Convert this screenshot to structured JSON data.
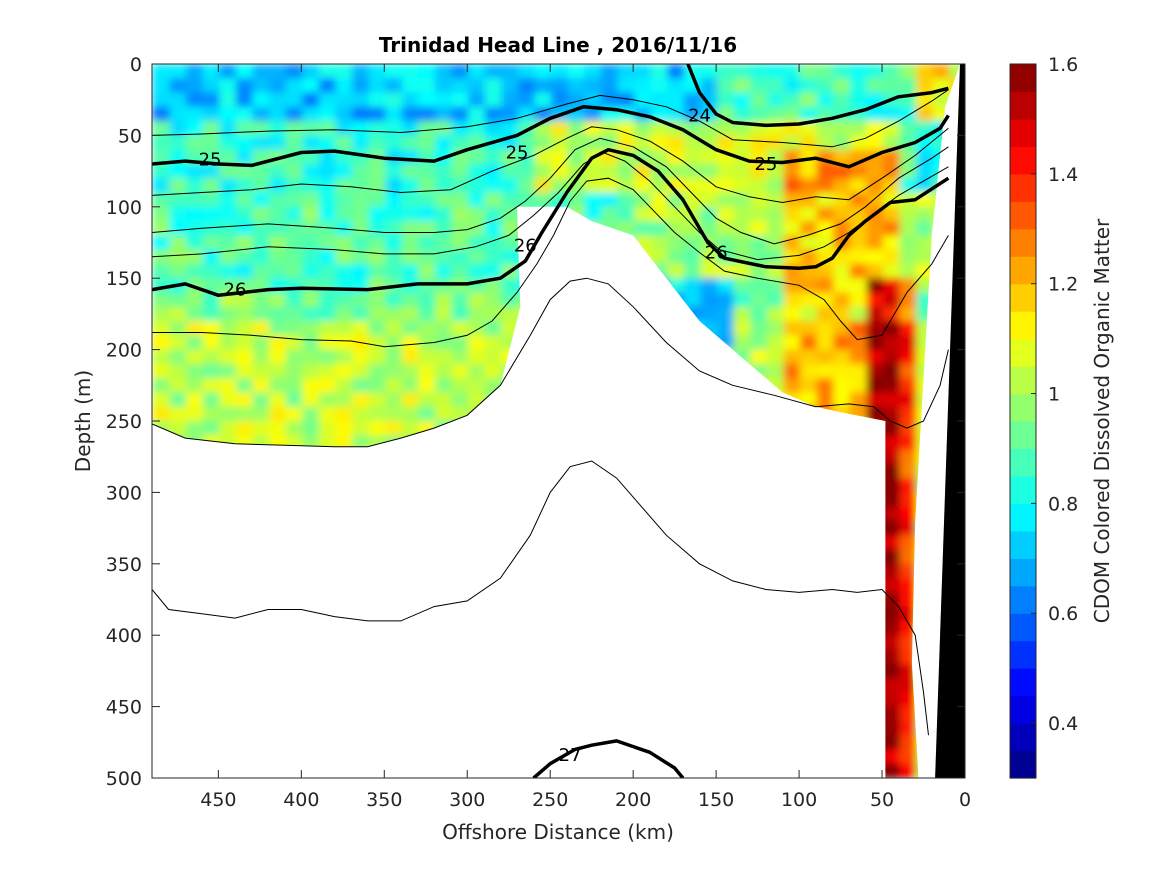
{
  "chart_data": {
    "type": "heatmap",
    "title": "Trinidad Head Line , 2016/11/16",
    "xlabel": "Offshore Distance (km)",
    "ylabel": "Depth (m)",
    "colorbar_label": "CDOM Colored Dissolved Organic Matter",
    "xlim": [
      490,
      0
    ],
    "ylim": [
      0,
      500
    ],
    "x_reversed": true,
    "y_reversed": true,
    "clim": [
      0.3,
      1.6
    ],
    "colormap": "jet",
    "x_ticks": [
      450,
      400,
      350,
      300,
      250,
      200,
      150,
      100,
      50,
      0
    ],
    "y_ticks": [
      0,
      50,
      100,
      150,
      200,
      250,
      300,
      350,
      400,
      450,
      500
    ],
    "colorbar_ticks": [
      0.4,
      0.6,
      0.8,
      1,
      1.2,
      1.4,
      1.6
    ],
    "colorbar_tick_labels": [
      "0.4",
      "0.6",
      "0.8",
      "1",
      "1.2",
      "1.4",
      "1.6"
    ],
    "contour_labels": [
      {
        "text": "24",
        "x": 160,
        "y": 36
      },
      {
        "text": "25",
        "x": 455,
        "y": 67
      },
      {
        "text": "25",
        "x": 270,
        "y": 62
      },
      {
        "text": "25",
        "x": 120,
        "y": 70
      },
      {
        "text": "26",
        "x": 440,
        "y": 158
      },
      {
        "text": "26",
        "x": 265,
        "y": 127
      },
      {
        "text": "26",
        "x": 150,
        "y": 132
      },
      {
        "text": "27",
        "x": 238,
        "y": 484
      }
    ],
    "bold_contours": [
      {
        "level": 24,
        "points": [
          [
            167,
            0
          ],
          [
            160,
            20
          ],
          [
            150,
            35
          ],
          [
            140,
            41
          ],
          [
            120,
            43
          ],
          [
            100,
            42
          ],
          [
            80,
            38
          ],
          [
            60,
            32
          ],
          [
            40,
            23
          ],
          [
            20,
            20
          ],
          [
            10,
            17
          ]
        ]
      },
      {
        "level": 25,
        "points": [
          [
            490,
            70
          ],
          [
            470,
            68
          ],
          [
            450,
            70
          ],
          [
            430,
            71
          ],
          [
            400,
            62
          ],
          [
            380,
            61
          ],
          [
            350,
            66
          ],
          [
            320,
            68
          ],
          [
            300,
            60
          ],
          [
            270,
            50
          ],
          [
            250,
            38
          ],
          [
            230,
            30
          ],
          [
            210,
            32
          ],
          [
            190,
            37
          ],
          [
            170,
            46
          ],
          [
            150,
            60
          ],
          [
            130,
            68
          ],
          [
            110,
            69
          ],
          [
            90,
            66
          ],
          [
            70,
            72
          ],
          [
            50,
            62
          ],
          [
            30,
            55
          ],
          [
            15,
            45
          ],
          [
            10,
            36
          ]
        ]
      },
      {
        "level": 26,
        "points": [
          [
            490,
            158
          ],
          [
            470,
            154
          ],
          [
            450,
            162
          ],
          [
            420,
            158
          ],
          [
            400,
            157
          ],
          [
            360,
            158
          ],
          [
            330,
            154
          ],
          [
            300,
            154
          ],
          [
            280,
            150
          ],
          [
            265,
            138
          ],
          [
            255,
            118
          ],
          [
            240,
            90
          ],
          [
            225,
            66
          ],
          [
            215,
            60
          ],
          [
            200,
            64
          ],
          [
            185,
            75
          ],
          [
            170,
            95
          ],
          [
            155,
            125
          ],
          [
            145,
            136
          ],
          [
            120,
            142
          ],
          [
            100,
            143
          ],
          [
            90,
            142
          ],
          [
            80,
            136
          ],
          [
            70,
            120
          ],
          [
            60,
            110
          ],
          [
            45,
            97
          ],
          [
            30,
            95
          ],
          [
            10,
            80
          ]
        ]
      },
      {
        "level": 27,
        "points": [
          [
            260,
            500
          ],
          [
            250,
            490
          ],
          [
            235,
            480
          ],
          [
            225,
            477
          ],
          [
            210,
            474
          ],
          [
            190,
            482
          ],
          [
            175,
            493
          ],
          [
            170,
            500
          ]
        ]
      }
    ],
    "thin_contours": [
      [
        [
          490,
          50
        ],
        [
          460,
          49
        ],
        [
          420,
          47
        ],
        [
          380,
          46
        ],
        [
          340,
          48
        ],
        [
          300,
          44
        ],
        [
          270,
          38
        ],
        [
          240,
          28
        ],
        [
          220,
          22
        ],
        [
          200,
          25
        ],
        [
          180,
          30
        ],
        [
          160,
          40
        ],
        [
          140,
          53
        ],
        [
          110,
          55
        ],
        [
          80,
          58
        ],
        [
          60,
          52
        ],
        [
          40,
          40
        ],
        [
          20,
          26
        ],
        [
          10,
          18
        ]
      ],
      [
        [
          490,
          92
        ],
        [
          460,
          90
        ],
        [
          430,
          88
        ],
        [
          400,
          84
        ],
        [
          370,
          86
        ],
        [
          340,
          90
        ],
        [
          310,
          88
        ],
        [
          285,
          75
        ],
        [
          260,
          64
        ],
        [
          240,
          52
        ],
        [
          225,
          44
        ],
        [
          210,
          46
        ],
        [
          190,
          54
        ],
        [
          170,
          68
        ],
        [
          150,
          86
        ],
        [
          130,
          93
        ],
        [
          110,
          97
        ],
        [
          90,
          93
        ],
        [
          70,
          95
        ],
        [
          50,
          80
        ],
        [
          30,
          64
        ],
        [
          10,
          45
        ]
      ],
      [
        [
          490,
          118
        ],
        [
          460,
          115
        ],
        [
          420,
          112
        ],
        [
          380,
          115
        ],
        [
          350,
          118
        ],
        [
          320,
          118
        ],
        [
          300,
          116
        ],
        [
          280,
          108
        ],
        [
          265,
          96
        ],
        [
          250,
          80
        ],
        [
          235,
          60
        ],
        [
          220,
          52
        ],
        [
          200,
          58
        ],
        [
          180,
          72
        ],
        [
          165,
          90
        ],
        [
          150,
          108
        ],
        [
          135,
          118
        ],
        [
          115,
          126
        ],
        [
          95,
          120
        ],
        [
          75,
          112
        ],
        [
          60,
          100
        ],
        [
          40,
          80
        ],
        [
          20,
          66
        ],
        [
          10,
          58
        ]
      ],
      [
        [
          490,
          135
        ],
        [
          460,
          133
        ],
        [
          420,
          128
        ],
        [
          380,
          130
        ],
        [
          350,
          133
        ],
        [
          320,
          133
        ],
        [
          295,
          128
        ],
        [
          275,
          120
        ],
        [
          260,
          106
        ],
        [
          245,
          90
        ],
        [
          230,
          70
        ],
        [
          218,
          62
        ],
        [
          205,
          68
        ],
        [
          190,
          82
        ],
        [
          175,
          100
        ],
        [
          160,
          118
        ],
        [
          148,
          130
        ],
        [
          125,
          137
        ],
        [
          100,
          134
        ],
        [
          85,
          128
        ],
        [
          70,
          118
        ],
        [
          55,
          105
        ],
        [
          40,
          92
        ],
        [
          25,
          82
        ],
        [
          10,
          72
        ]
      ],
      [
        [
          490,
          188
        ],
        [
          460,
          188
        ],
        [
          430,
          190
        ],
        [
          400,
          193
        ],
        [
          370,
          194
        ],
        [
          350,
          198
        ],
        [
          320,
          195
        ],
        [
          300,
          190
        ],
        [
          285,
          180
        ],
        [
          270,
          160
        ],
        [
          258,
          140
        ],
        [
          248,
          120
        ],
        [
          238,
          96
        ],
        [
          228,
          82
        ],
        [
          215,
          80
        ],
        [
          200,
          88
        ],
        [
          190,
          100
        ],
        [
          175,
          118
        ],
        [
          160,
          132
        ],
        [
          145,
          145
        ],
        [
          125,
          150
        ],
        [
          100,
          155
        ],
        [
          85,
          165
        ],
        [
          75,
          180
        ],
        [
          65,
          193
        ],
        [
          50,
          190
        ],
        [
          35,
          160
        ],
        [
          20,
          140
        ],
        [
          10,
          120
        ]
      ],
      [
        [
          490,
          252
        ],
        [
          470,
          262
        ],
        [
          440,
          266
        ],
        [
          410,
          267
        ],
        [
          380,
          268
        ],
        [
          360,
          268
        ],
        [
          340,
          262
        ],
        [
          320,
          255
        ],
        [
          300,
          246
        ],
        [
          280,
          225
        ],
        [
          262,
          190
        ],
        [
          250,
          165
        ],
        [
          238,
          152
        ],
        [
          228,
          150
        ],
        [
          215,
          154
        ],
        [
          200,
          170
        ],
        [
          180,
          195
        ],
        [
          160,
          215
        ],
        [
          140,
          225
        ],
        [
          115,
          232
        ],
        [
          90,
          240
        ],
        [
          70,
          238
        ],
        [
          55,
          240
        ],
        [
          45,
          250
        ],
        [
          35,
          255
        ],
        [
          25,
          250
        ],
        [
          15,
          225
        ],
        [
          10,
          200
        ]
      ],
      [
        [
          490,
          368
        ],
        [
          480,
          382
        ],
        [
          460,
          385
        ],
        [
          440,
          388
        ],
        [
          420,
          382
        ],
        [
          400,
          382
        ],
        [
          380,
          387
        ],
        [
          360,
          390
        ],
        [
          340,
          390
        ],
        [
          320,
          380
        ],
        [
          300,
          376
        ],
        [
          280,
          360
        ],
        [
          262,
          330
        ],
        [
          250,
          300
        ],
        [
          238,
          282
        ],
        [
          225,
          278
        ],
        [
          210,
          290
        ],
        [
          195,
          310
        ],
        [
          180,
          330
        ],
        [
          160,
          350
        ],
        [
          140,
          362
        ],
        [
          120,
          368
        ],
        [
          100,
          370
        ],
        [
          80,
          368
        ],
        [
          65,
          370
        ],
        [
          50,
          368
        ],
        [
          40,
          380
        ],
        [
          30,
          400
        ],
        [
          25,
          440
        ],
        [
          22,
          470
        ]
      ]
    ],
    "voids": [
      [
        [
          490,
          252
        ],
        [
          470,
          262
        ],
        [
          440,
          266
        ],
        [
          410,
          267
        ],
        [
          380,
          268
        ],
        [
          360,
          268
        ],
        [
          340,
          262
        ],
        [
          320,
          255
        ],
        [
          300,
          246
        ],
        [
          280,
          225
        ],
        [
          268,
          170
        ],
        [
          270,
          100
        ],
        [
          240,
          100
        ],
        [
          225,
          110
        ],
        [
          200,
          120
        ],
        [
          180,
          150
        ],
        [
          160,
          180
        ],
        [
          140,
          200
        ],
        [
          110,
          230
        ],
        [
          90,
          240
        ],
        [
          70,
          245
        ],
        [
          48,
          250
        ],
        [
          48,
          500
        ],
        [
          490,
          500
        ]
      ]
    ],
    "shelf": [
      [
        0,
        0
      ],
      [
        3,
        0
      ],
      [
        18,
        500
      ],
      [
        0,
        500
      ]
    ],
    "white_wedge": [
      [
        3,
        0
      ],
      [
        12,
        30
      ],
      [
        20,
        120
      ],
      [
        25,
        220
      ],
      [
        30,
        320
      ],
      [
        32,
        420
      ],
      [
        28,
        500
      ],
      [
        18,
        500
      ]
    ]
  }
}
